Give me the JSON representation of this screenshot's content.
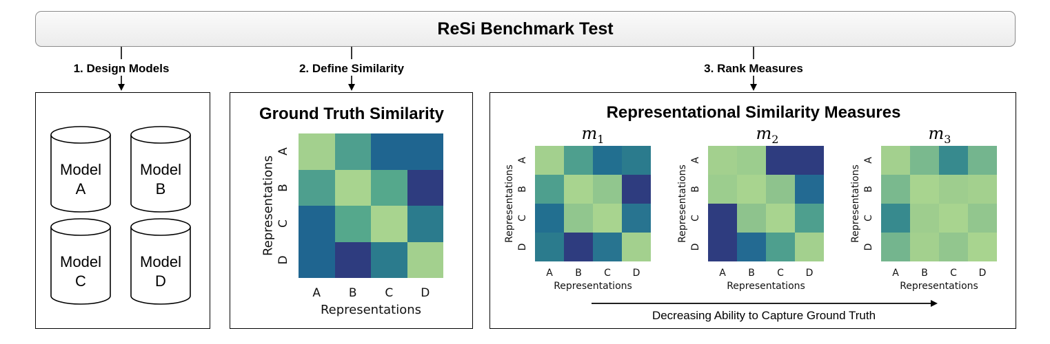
{
  "title": "ReSi Benchmark Test",
  "steps": [
    "1. Design Models",
    "2. Define Similarity",
    "3. Rank Measures"
  ],
  "models": [
    {
      "line1": "Model",
      "line2": "A"
    },
    {
      "line1": "Model",
      "line2": "B"
    },
    {
      "line1": "Model",
      "line2": "C"
    },
    {
      "line1": "Model",
      "line2": "D"
    }
  ],
  "ground_truth": {
    "title": "Ground Truth Similarity",
    "xlabel": "Representations",
    "ylabel": "Representations",
    "labels": [
      "A",
      "B",
      "C",
      "D"
    ],
    "colors": [
      [
        "#a3d08e",
        "#4e9f8e",
        "#1f6590",
        "#1f6590"
      ],
      [
        "#4e9f8e",
        "#a8d48f",
        "#55a88c",
        "#2e3c7f"
      ],
      [
        "#1f6590",
        "#55a88c",
        "#a8d48f",
        "#2b7b8d"
      ],
      [
        "#1f6590",
        "#2e3c7f",
        "#2b7b8d",
        "#a3d08e"
      ]
    ]
  },
  "measures": {
    "title": "Representational Similarity Measures",
    "xlabel": "Representations",
    "ylabel": "Representations",
    "labels": [
      "A",
      "B",
      "C",
      "D"
    ],
    "items": [
      {
        "symbol": "m",
        "subscript": "1",
        "colors": [
          [
            "#a3d08e",
            "#4e9f8e",
            "#226f90",
            "#2b7b8d"
          ],
          [
            "#4e9f8e",
            "#a8d48f",
            "#91c68e",
            "#2e3c7f"
          ],
          [
            "#226f90",
            "#91c68e",
            "#a8d48f",
            "#287490"
          ],
          [
            "#2b7b8d",
            "#2e3c7f",
            "#287490",
            "#a3d08e"
          ]
        ]
      },
      {
        "symbol": "m",
        "subscript": "2",
        "colors": [
          [
            "#a3d08e",
            "#9ccd8e",
            "#2e3c7f",
            "#2e3c7f"
          ],
          [
            "#9ccd8e",
            "#a8d48f",
            "#8ec38d",
            "#236a92"
          ],
          [
            "#2e3c7f",
            "#8ec38d",
            "#a8d48f",
            "#4e9f8e"
          ],
          [
            "#2e3c7f",
            "#236a92",
            "#4e9f8e",
            "#a3d08e"
          ]
        ]
      },
      {
        "symbol": "m",
        "subscript": "3",
        "colors": [
          [
            "#a3d08e",
            "#7ab98e",
            "#378a8e",
            "#74b58e"
          ],
          [
            "#7ab98e",
            "#a8d48f",
            "#9ecd8e",
            "#a3d08e"
          ],
          [
            "#378a8e",
            "#9ecd8e",
            "#a8d48f",
            "#92c68e"
          ],
          [
            "#74b58e",
            "#a3d08e",
            "#92c68e",
            "#a8d48f"
          ]
        ]
      }
    ]
  },
  "footnote": "Decreasing Ability to Capture Ground Truth"
}
